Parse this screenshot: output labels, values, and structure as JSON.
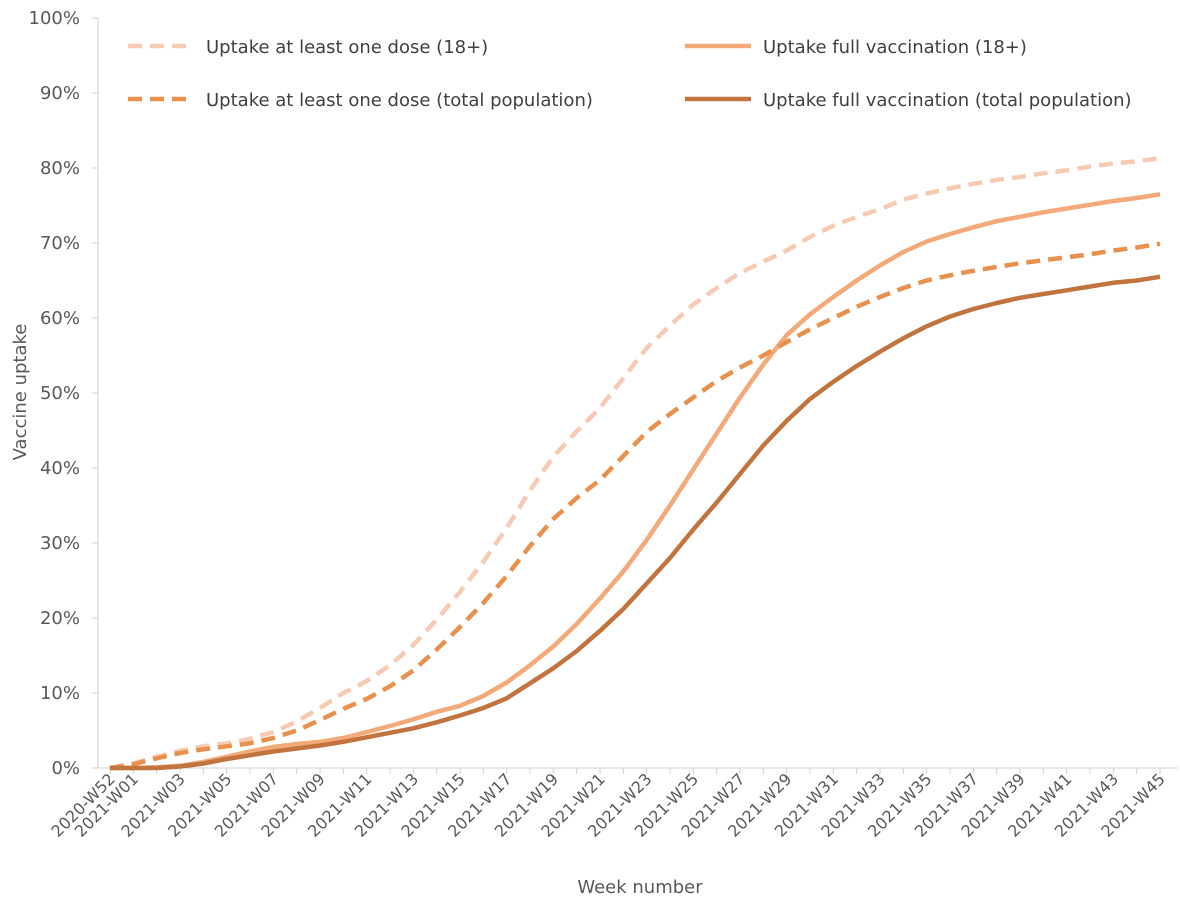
{
  "chart_data": {
    "type": "line",
    "xlabel": "Week number",
    "ylabel": "Vaccine uptake",
    "ylim": [
      0,
      100
    ],
    "y_ticks": [
      "0%",
      "10%",
      "20%",
      "30%",
      "40%",
      "50%",
      "60%",
      "70%",
      "80%",
      "90%",
      "100%"
    ],
    "x_tick_labels": [
      "2020-W52",
      "2021-W01",
      "2021-W03",
      "2021-W05",
      "2021-W07",
      "2021-W09",
      "2021-W11",
      "2021-W13",
      "2021-W15",
      "2021-W17",
      "2021-W19",
      "2021-W21",
      "2021-W23",
      "2021-W25",
      "2021-W27",
      "2021-W29",
      "2021-W31",
      "2021-W33",
      "2021-W35",
      "2021-W37",
      "2021-W39",
      "2021-W41",
      "2021-W43",
      "2021-W45"
    ],
    "x": [
      "2020-W52",
      "2021-W01",
      "2021-W02",
      "2021-W03",
      "2021-W04",
      "2021-W05",
      "2021-W06",
      "2021-W07",
      "2021-W08",
      "2021-W09",
      "2021-W10",
      "2021-W11",
      "2021-W12",
      "2021-W13",
      "2021-W14",
      "2021-W15",
      "2021-W16",
      "2021-W17",
      "2021-W18",
      "2021-W19",
      "2021-W20",
      "2021-W21",
      "2021-W22",
      "2021-W23",
      "2021-W24",
      "2021-W25",
      "2021-W26",
      "2021-W27",
      "2021-W28",
      "2021-W29",
      "2021-W30",
      "2021-W31",
      "2021-W32",
      "2021-W33",
      "2021-W34",
      "2021-W35",
      "2021-W36",
      "2021-W37",
      "2021-W38",
      "2021-W39",
      "2021-W40",
      "2021-W41",
      "2021-W42",
      "2021-W43",
      "2021-W44",
      "2021-W45"
    ],
    "legend_position": "top",
    "grid": false,
    "series": [
      {
        "name": "Uptake at least one dose (18+)",
        "color": "#F7CBB3",
        "style": "dashed",
        "values": [
          0.0,
          0.6,
          1.5,
          2.3,
          2.9,
          3.3,
          3.9,
          4.8,
          6.2,
          8.0,
          10.0,
          11.6,
          13.7,
          16.4,
          19.8,
          23.5,
          27.5,
          32.0,
          37.0,
          41.5,
          44.9,
          48.0,
          52.0,
          56.0,
          59.0,
          61.8,
          64.0,
          66.0,
          67.5,
          69.0,
          70.8,
          72.3,
          73.5,
          74.5,
          75.8,
          76.6,
          77.3,
          77.9,
          78.4,
          78.8,
          79.3,
          79.7,
          80.2,
          80.6,
          80.9,
          81.3
        ]
      },
      {
        "name": "Uptake full vaccination (18+)",
        "color": "#F4A978",
        "style": "solid",
        "values": [
          0.0,
          0.0,
          0.1,
          0.3,
          0.8,
          1.5,
          2.2,
          2.8,
          3.2,
          3.5,
          4.0,
          4.8,
          5.6,
          6.5,
          7.5,
          8.3,
          9.6,
          11.4,
          13.7,
          16.2,
          19.2,
          22.6,
          26.2,
          30.4,
          35.0,
          39.8,
          44.6,
          49.4,
          53.8,
          57.7,
          60.5,
          62.8,
          65.0,
          67.0,
          68.8,
          70.2,
          71.2,
          72.1,
          72.9,
          73.5,
          74.1,
          74.6,
          75.1,
          75.6,
          76.0,
          76.5
        ]
      },
      {
        "name": "Uptake at least one dose (total population)",
        "color": "#E8914F",
        "style": "dashed",
        "values": [
          0.0,
          0.5,
          1.3,
          2.0,
          2.5,
          2.9,
          3.3,
          4.0,
          5.0,
          6.4,
          7.9,
          9.2,
          10.9,
          13.0,
          15.8,
          18.8,
          22.0,
          25.6,
          29.6,
          33.2,
          36.0,
          38.4,
          41.6,
          44.8,
          47.2,
          49.4,
          51.6,
          53.4,
          55.0,
          56.8,
          58.5,
          60.0,
          61.5,
          62.8,
          64.0,
          65.0,
          65.7,
          66.3,
          66.8,
          67.3,
          67.7,
          68.1,
          68.5,
          69.0,
          69.4,
          69.9
        ]
      },
      {
        "name": "Uptake full vaccination (total population)",
        "color": "#C2743F",
        "style": "solid",
        "values": [
          0.0,
          0.0,
          0.0,
          0.2,
          0.6,
          1.2,
          1.7,
          2.2,
          2.6,
          3.0,
          3.5,
          4.1,
          4.7,
          5.3,
          6.1,
          7.0,
          8.0,
          9.3,
          11.3,
          13.3,
          15.6,
          18.3,
          21.2,
          24.6,
          28.0,
          31.8,
          35.4,
          39.2,
          43.0,
          46.3,
          49.2,
          51.5,
          53.6,
          55.5,
          57.3,
          58.9,
          60.2,
          61.2,
          62.0,
          62.7,
          63.2,
          63.7,
          64.2,
          64.7,
          65.0,
          65.5
        ]
      }
    ]
  }
}
